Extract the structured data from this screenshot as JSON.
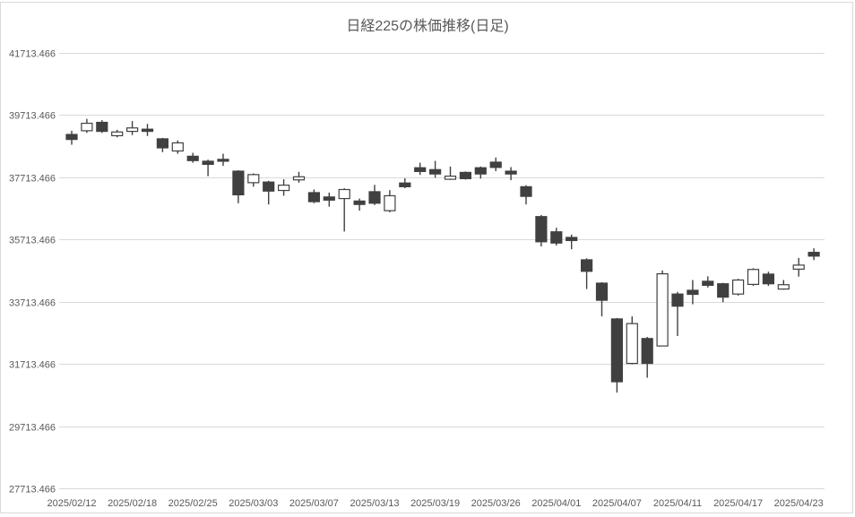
{
  "colors": {
    "background": "#ffffff",
    "chart_border": "#d9d9d9",
    "gridline": "#d9d9d9",
    "axis_text": "#595959",
    "title_text": "#595959",
    "candle_outline": "#404040",
    "candle_up_fill": "#ffffff",
    "candle_down_fill": "#404040"
  },
  "chart_data": {
    "type": "candlestick",
    "title": "日経225の株価推移(日足)",
    "grid": "horizontal",
    "legend": "none",
    "y_axis": {
      "min": 27713.466,
      "max": 41713.466,
      "tick_interval": 2000,
      "tick_labels": [
        "41713.466",
        "39713.466",
        "37713.466",
        "35713.466",
        "33713.466",
        "31713.466",
        "29713.466",
        "27713.466"
      ]
    },
    "x_axis": {
      "label_every_n_candles": 4,
      "tick_labels": [
        "2025/02/12",
        "2025/02/18",
        "2025/02/25",
        "2025/03/03",
        "2025/03/07",
        "2025/03/13",
        "2025/03/19",
        "2025/03/26",
        "2025/04/01",
        "2025/04/07",
        "2025/04/11",
        "2025/04/17",
        "2025/04/23"
      ]
    },
    "candles": [
      {
        "date": "2025/02/12",
        "open": 39090,
        "high": 39210,
        "low": 38760,
        "close": 38930
      },
      {
        "date": "2025/02/13",
        "open": 39210,
        "high": 39590,
        "low": 39140,
        "close": 39450
      },
      {
        "date": "2025/02/14",
        "open": 39480,
        "high": 39550,
        "low": 39140,
        "close": 39190
      },
      {
        "date": "2025/02/17",
        "open": 39050,
        "high": 39240,
        "low": 39000,
        "close": 39170
      },
      {
        "date": "2025/02/18",
        "open": 39190,
        "high": 39520,
        "low": 39070,
        "close": 39300
      },
      {
        "date": "2025/02/19",
        "open": 39260,
        "high": 39430,
        "low": 39040,
        "close": 39190
      },
      {
        "date": "2025/02/20",
        "open": 38950,
        "high": 38980,
        "low": 38520,
        "close": 38660
      },
      {
        "date": "2025/02/21",
        "open": 38560,
        "high": 38900,
        "low": 38470,
        "close": 38820
      },
      {
        "date": "2025/02/25",
        "open": 38390,
        "high": 38500,
        "low": 38180,
        "close": 38250
      },
      {
        "date": "2025/02/26",
        "open": 38230,
        "high": 38280,
        "low": 37750,
        "close": 38130
      },
      {
        "date": "2025/02/27",
        "open": 38290,
        "high": 38470,
        "low": 38080,
        "close": 38230
      },
      {
        "date": "2025/02/28",
        "open": 37910,
        "high": 37940,
        "low": 36880,
        "close": 37150
      },
      {
        "date": "2025/03/03",
        "open": 37540,
        "high": 37840,
        "low": 37410,
        "close": 37800
      },
      {
        "date": "2025/03/04",
        "open": 37560,
        "high": 37600,
        "low": 36840,
        "close": 37270
      },
      {
        "date": "2025/03/05",
        "open": 37290,
        "high": 37650,
        "low": 37120,
        "close": 37460
      },
      {
        "date": "2025/03/06",
        "open": 37630,
        "high": 37890,
        "low": 37540,
        "close": 37730
      },
      {
        "date": "2025/03/07",
        "open": 37220,
        "high": 37320,
        "low": 36880,
        "close": 36930
      },
      {
        "date": "2025/03/10",
        "open": 37080,
        "high": 37220,
        "low": 36770,
        "close": 36980
      },
      {
        "date": "2025/03/11",
        "open": 37030,
        "high": 37360,
        "low": 35970,
        "close": 37320
      },
      {
        "date": "2025/03/12",
        "open": 36950,
        "high": 37030,
        "low": 36640,
        "close": 36840
      },
      {
        "date": "2025/03/13",
        "open": 37250,
        "high": 37470,
        "low": 36820,
        "close": 36880
      },
      {
        "date": "2025/03/14",
        "open": 36640,
        "high": 37300,
        "low": 36590,
        "close": 37120
      },
      {
        "date": "2025/03/17",
        "open": 37530,
        "high": 37680,
        "low": 37360,
        "close": 37410
      },
      {
        "date": "2025/03/18",
        "open": 38020,
        "high": 38180,
        "low": 37790,
        "close": 37900
      },
      {
        "date": "2025/03/19",
        "open": 37960,
        "high": 38240,
        "low": 37700,
        "close": 37820
      },
      {
        "date": "2025/03/21",
        "open": 37650,
        "high": 38060,
        "low": 37630,
        "close": 37750
      },
      {
        "date": "2025/03/24",
        "open": 37870,
        "high": 37900,
        "low": 37640,
        "close": 37670
      },
      {
        "date": "2025/03/25",
        "open": 38020,
        "high": 38060,
        "low": 37670,
        "close": 37820
      },
      {
        "date": "2025/03/26",
        "open": 38200,
        "high": 38350,
        "low": 37910,
        "close": 38030
      },
      {
        "date": "2025/03/27",
        "open": 37910,
        "high": 38040,
        "low": 37620,
        "close": 37820
      },
      {
        "date": "2025/03/28",
        "open": 37410,
        "high": 37460,
        "low": 36840,
        "close": 37100
      },
      {
        "date": "2025/03/31",
        "open": 36450,
        "high": 36500,
        "low": 35490,
        "close": 35640
      },
      {
        "date": "2025/04/01",
        "open": 35960,
        "high": 36090,
        "low": 35520,
        "close": 35600
      },
      {
        "date": "2025/04/02",
        "open": 35780,
        "high": 35870,
        "low": 35400,
        "close": 35680
      },
      {
        "date": "2025/04/03",
        "open": 35060,
        "high": 35110,
        "low": 34120,
        "close": 34690
      },
      {
        "date": "2025/04/04",
        "open": 34310,
        "high": 34340,
        "low": 33240,
        "close": 33760
      },
      {
        "date": "2025/04/07",
        "open": 33160,
        "high": 33190,
        "low": 30790,
        "close": 31140
      },
      {
        "date": "2025/04/08",
        "open": 31730,
        "high": 33240,
        "low": 31700,
        "close": 33010
      },
      {
        "date": "2025/04/09",
        "open": 32530,
        "high": 32580,
        "low": 31270,
        "close": 31730
      },
      {
        "date": "2025/04/10",
        "open": 32290,
        "high": 34720,
        "low": 32280,
        "close": 34610
      },
      {
        "date": "2025/04/11",
        "open": 33960,
        "high": 34030,
        "low": 32610,
        "close": 33570
      },
      {
        "date": "2025/04/14",
        "open": 34080,
        "high": 34410,
        "low": 33630,
        "close": 33950
      },
      {
        "date": "2025/04/15",
        "open": 34370,
        "high": 34530,
        "low": 34170,
        "close": 34240
      },
      {
        "date": "2025/04/16",
        "open": 34290,
        "high": 34320,
        "low": 33700,
        "close": 33860
      },
      {
        "date": "2025/04/17",
        "open": 33960,
        "high": 34450,
        "low": 33910,
        "close": 34410
      },
      {
        "date": "2025/04/18",
        "open": 34270,
        "high": 34790,
        "low": 34220,
        "close": 34750
      },
      {
        "date": "2025/04/21",
        "open": 34600,
        "high": 34680,
        "low": 34220,
        "close": 34290
      },
      {
        "date": "2025/04/22",
        "open": 34120,
        "high": 34410,
        "low": 34100,
        "close": 34260
      },
      {
        "date": "2025/04/23",
        "open": 34760,
        "high": 35120,
        "low": 34520,
        "close": 34890
      },
      {
        "date": "2025/04/24",
        "open": 35300,
        "high": 35430,
        "low": 35050,
        "close": 35180
      }
    ]
  }
}
